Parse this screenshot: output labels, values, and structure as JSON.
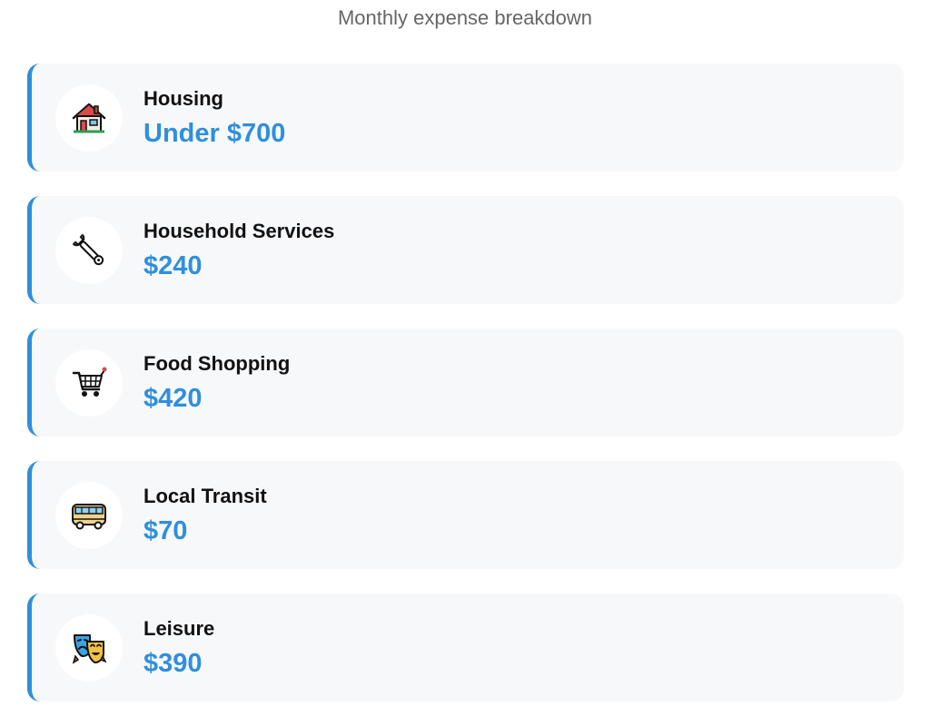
{
  "header": {
    "subtitle": "Monthly expense breakdown"
  },
  "accent_color": "#2f8fdc",
  "expenses": [
    {
      "icon": "house-icon",
      "label": "Housing",
      "amount": "Under $700"
    },
    {
      "icon": "wrench-icon",
      "label": "Household Services",
      "amount": "$240"
    },
    {
      "icon": "shopping-cart-icon",
      "label": "Food Shopping",
      "amount": "$420"
    },
    {
      "icon": "bus-icon",
      "label": "Local Transit",
      "amount": "$70"
    },
    {
      "icon": "theater-masks-icon",
      "label": "Leisure",
      "amount": "$390"
    }
  ]
}
